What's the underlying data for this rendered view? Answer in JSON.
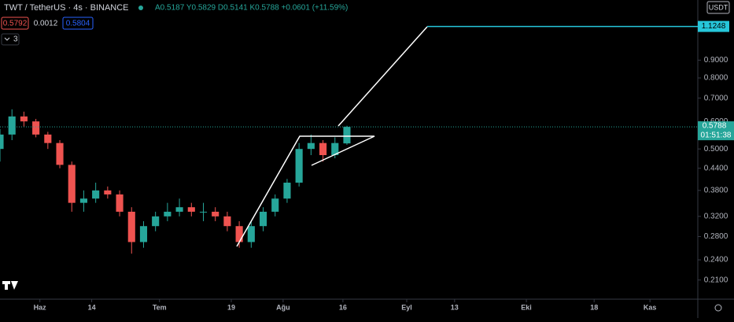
{
  "header": {
    "symbol": "TWT / TetherUS · 4s · BINANCE",
    "ohlc": "A0.5187 Y0.5829 D0.5141 K0.5788 +0.0601 (+11.59%)",
    "bid": "0.5792",
    "spread": "0.0012",
    "ask": "0.5804",
    "indicators": "3"
  },
  "chart_data": {
    "type": "candlestick",
    "x": [
      142,
      145,
      148,
      151,
      154,
      157,
      160,
      163,
      166,
      169,
      172,
      175,
      178,
      181,
      184,
      187,
      190,
      193,
      196,
      199,
      202,
      205,
      208,
      211,
      214,
      217,
      220,
      223,
      226,
      229
    ],
    "open": [
      0.5,
      0.55,
      0.62,
      0.6,
      0.55,
      0.52,
      0.45,
      0.35,
      0.36,
      0.38,
      0.37,
      0.33,
      0.27,
      0.3,
      0.32,
      0.33,
      0.34,
      0.33,
      0.33,
      0.32,
      0.3,
      0.27,
      0.3,
      0.33,
      0.36,
      0.4,
      0.5,
      0.52,
      0.48,
      0.5187
    ],
    "high": [
      0.57,
      0.65,
      0.64,
      0.61,
      0.56,
      0.53,
      0.46,
      0.38,
      0.4,
      0.39,
      0.38,
      0.34,
      0.31,
      0.33,
      0.35,
      0.36,
      0.35,
      0.35,
      0.34,
      0.33,
      0.31,
      0.31,
      0.34,
      0.37,
      0.41,
      0.52,
      0.55,
      0.53,
      0.54,
      0.5829
    ],
    "low": [
      0.46,
      0.53,
      0.58,
      0.54,
      0.5,
      0.44,
      0.33,
      0.33,
      0.35,
      0.36,
      0.32,
      0.25,
      0.26,
      0.29,
      0.31,
      0.32,
      0.32,
      0.31,
      0.31,
      0.29,
      0.26,
      0.26,
      0.29,
      0.32,
      0.35,
      0.39,
      0.48,
      0.46,
      0.47,
      0.5141
    ],
    "close": [
      0.55,
      0.62,
      0.6,
      0.55,
      0.52,
      0.45,
      0.35,
      0.36,
      0.38,
      0.37,
      0.33,
      0.27,
      0.3,
      0.32,
      0.33,
      0.34,
      0.33,
      0.33,
      0.32,
      0.3,
      0.27,
      0.3,
      0.33,
      0.36,
      0.4,
      0.5,
      0.52,
      0.48,
      0.52,
      0.5788
    ],
    "up_color": "#26a69a",
    "down_color": "#ef5350",
    "xlim": [
      142,
      317
    ],
    "xticks": [
      {
        "value": 152,
        "label": "Haz"
      },
      {
        "value": 165,
        "label": "14"
      },
      {
        "value": 182,
        "label": "Tem"
      },
      {
        "value": 200,
        "label": "19"
      },
      {
        "value": 213,
        "label": "Ağu"
      },
      {
        "value": 228,
        "label": "16"
      },
      {
        "value": 244,
        "label": "Eyl"
      },
      {
        "value": 256,
        "label": "13"
      },
      {
        "value": 274,
        "label": "Eki"
      },
      {
        "value": 291,
        "label": "18"
      },
      {
        "value": 305,
        "label": "Kas"
      }
    ],
    "ylim": [
      0.185,
      1.34
    ],
    "log_scale": true,
    "yticks": [
      {
        "value": 0.21,
        "label": "0.2100"
      },
      {
        "value": 0.24,
        "label": "0.2400"
      },
      {
        "value": 0.28,
        "label": "0.2800"
      },
      {
        "value": 0.32,
        "label": "0.3200"
      },
      {
        "value": 0.38,
        "label": "0.3800"
      },
      {
        "value": 0.44,
        "label": "0.4400"
      },
      {
        "value": 0.5,
        "label": "0.5000"
      },
      {
        "value": 0.6,
        "label": "0.6000"
      },
      {
        "value": 0.7,
        "label": "0.7000"
      },
      {
        "value": 0.8,
        "label": "0.8000"
      },
      {
        "value": 0.9,
        "label": "0.9000"
      }
    ],
    "y_axis_label": "USDT",
    "target": {
      "value": 1.1248,
      "label": "1.1248",
      "color": "#26c6da"
    },
    "last_price": {
      "value": 0.5788,
      "label": "0.5788",
      "color": "#26a69a"
    },
    "countdown": "01:51:38"
  }
}
